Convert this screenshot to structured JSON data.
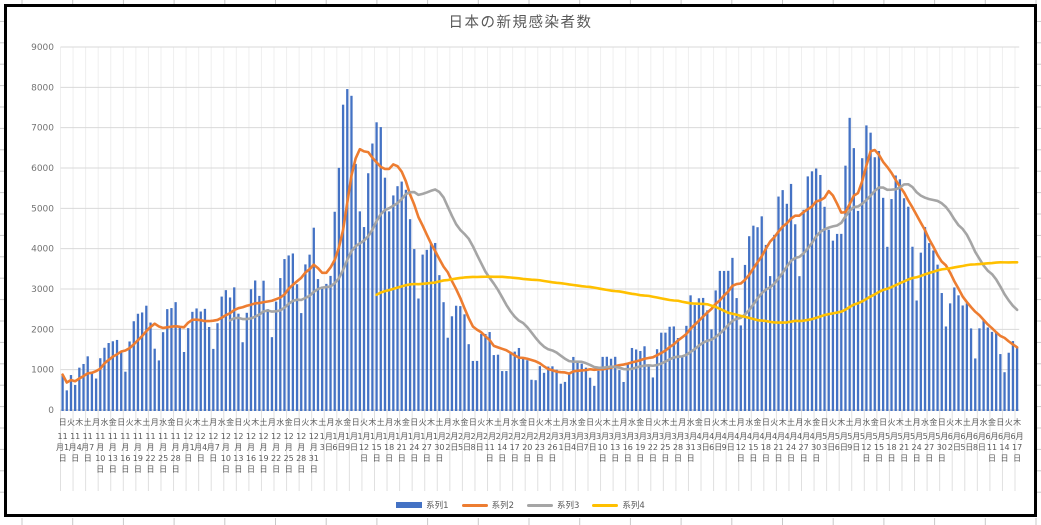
{
  "title": "日本の新規感染者数",
  "y_axis": {
    "min": 0,
    "max": 9000,
    "step": 1000,
    "tick_labels": [
      "0",
      "1000",
      "2000",
      "3000",
      "4000",
      "5000",
      "6000",
      "7000",
      "8000",
      "9000"
    ]
  },
  "x_axis": {
    "weekday_cycle": [
      "日",
      "月",
      "火",
      "水",
      "木",
      "金",
      "土"
    ],
    "start_weekday": "日",
    "weekday_label_interval": 2,
    "date_label_interval": 3,
    "month_char": "月",
    "day_char": "日",
    "first_label": "11月1日",
    "last_label": "6月17日",
    "months": [
      {
        "month": 11,
        "num_days": 30
      },
      {
        "month": 12,
        "num_days": 31
      },
      {
        "month": 1,
        "num_days": 31
      },
      {
        "month": 2,
        "num_days": 28
      },
      {
        "month": 3,
        "num_days": 31
      },
      {
        "month": 4,
        "num_days": 30
      },
      {
        "month": 5,
        "num_days": 31
      },
      {
        "month": 6,
        "num_days": 17
      }
    ]
  },
  "legend": {
    "items": [
      "系列1",
      "系列2",
      "系列3",
      "系列4"
    ]
  },
  "colors": {
    "bar": "#4472C4",
    "line2": "#ED7D31",
    "line3": "#A5A5A5",
    "line4": "#FFC000",
    "gridline": "#D9D9D9",
    "gridline_vertical": "#EFEFEF",
    "label_area_gridline": "#E0E0E0",
    "axis_line": "#C0C0C0",
    "axis_text": "#737373",
    "label_text": "#595959",
    "title_text": "#595959",
    "frame": "#000000",
    "worksheet_tick": "#C8C8C8"
  },
  "chart_data": {
    "type": "bar+line combo",
    "title": "日本の新規感染者数",
    "ylim": [
      0,
      9000
    ],
    "x_unit": "day",
    "x_count": 229,
    "x_range": "11月1日 〜 6月17日 (毎日, 229日間)",
    "series": [
      {
        "name": "系列1",
        "type": "bar",
        "color": "#4472C4",
        "values": [
          877,
          487,
          867,
          622,
          1050,
          1141,
          1331,
          953,
          780,
          1284,
          1543,
          1661,
          1704,
          1737,
          1440,
          950,
          1699,
          2201,
          2386,
          2418,
          2586,
          2168,
          1520,
          1229,
          1930,
          2501,
          2527,
          2674,
          2058,
          1438,
          2030,
          2434,
          2518,
          2442,
          2508,
          2058,
          1515,
          2152,
          2812,
          2972,
          2790,
          3041,
          2388,
          1680,
          2410,
          2994,
          3211,
          2829,
          3206,
          2501,
          1806,
          2688,
          3271,
          3742,
          3832,
          3881,
          3119,
          2403,
          3610,
          3852,
          4520,
          3246,
          3059,
          3127,
          3325,
          4915,
          6004,
          7570,
          7957,
          7790,
          6102,
          4925,
          4536,
          5870,
          6607,
          7133,
          7014,
          5760,
          4925,
          5320,
          5549,
          5663,
          5460,
          4731,
          3990,
          2764,
          3853,
          3971,
          4133,
          4141,
          3344,
          2673,
          1792,
          2324,
          2585,
          2576,
          2372,
          1632,
          1216,
          1217,
          1887,
          1885,
          1933,
          1362,
          1371,
          965,
          966,
          1443,
          1448,
          1538,
          1301,
          1234,
          750,
          739,
          1087,
          922,
          1076,
          1083,
          999,
          651,
          697,
          888,
          1316,
          1173,
          1148,
          1050,
          800,
          599,
          974,
          1317,
          1320,
          1271,
          1319,
          989,
          695,
          1133,
          1538,
          1500,
          1463,
          1580,
          1121,
          807,
          1507,
          1917,
          1918,
          2064,
          2072,
          1785,
          1348,
          2087,
          2843,
          2601,
          2770,
          2779,
          2472,
          1999,
          2965,
          3449,
          3448,
          3451,
          3772,
          2775,
          2097,
          3597,
          4309,
          4570,
          4532,
          4802,
          4093,
          3320,
          4342,
          5292,
          5452,
          5113,
          5605,
          4605,
          3318,
          4965,
          5792,
          5918,
          5986,
          5827,
          5038,
          4471,
          4199,
          4366,
          4367,
          6058,
          7244,
          6493,
          4936,
          6243,
          7056,
          6876,
          6267,
          6421,
          5261,
          4046,
          5230,
          5814,
          5720,
          5250,
          5040,
          4048,
          2715,
          3901,
          4536,
          4138,
          3955,
          3604,
          2900,
          2071,
          2644,
          3038,
          2843,
          2592,
          2644,
          2023,
          1278,
          2025,
          2242,
          2046,
          1937,
          1942,
          1387,
          937,
          1420,
          1709,
          1554
        ]
      },
      {
        "name": "系列2",
        "type": "line",
        "color": "#ED7D31",
        "derived": "moving average of 系列1",
        "window": 7,
        "start_index": 0
      },
      {
        "name": "系列3",
        "type": "line",
        "color": "#A5A5A5",
        "derived": "moving average of 系列1",
        "window": 25,
        "start_index": 40
      },
      {
        "name": "系列4",
        "type": "line",
        "color": "#FFC000",
        "derived": "moving average of 系列1",
        "window": 90,
        "start_index": 75
      }
    ]
  }
}
